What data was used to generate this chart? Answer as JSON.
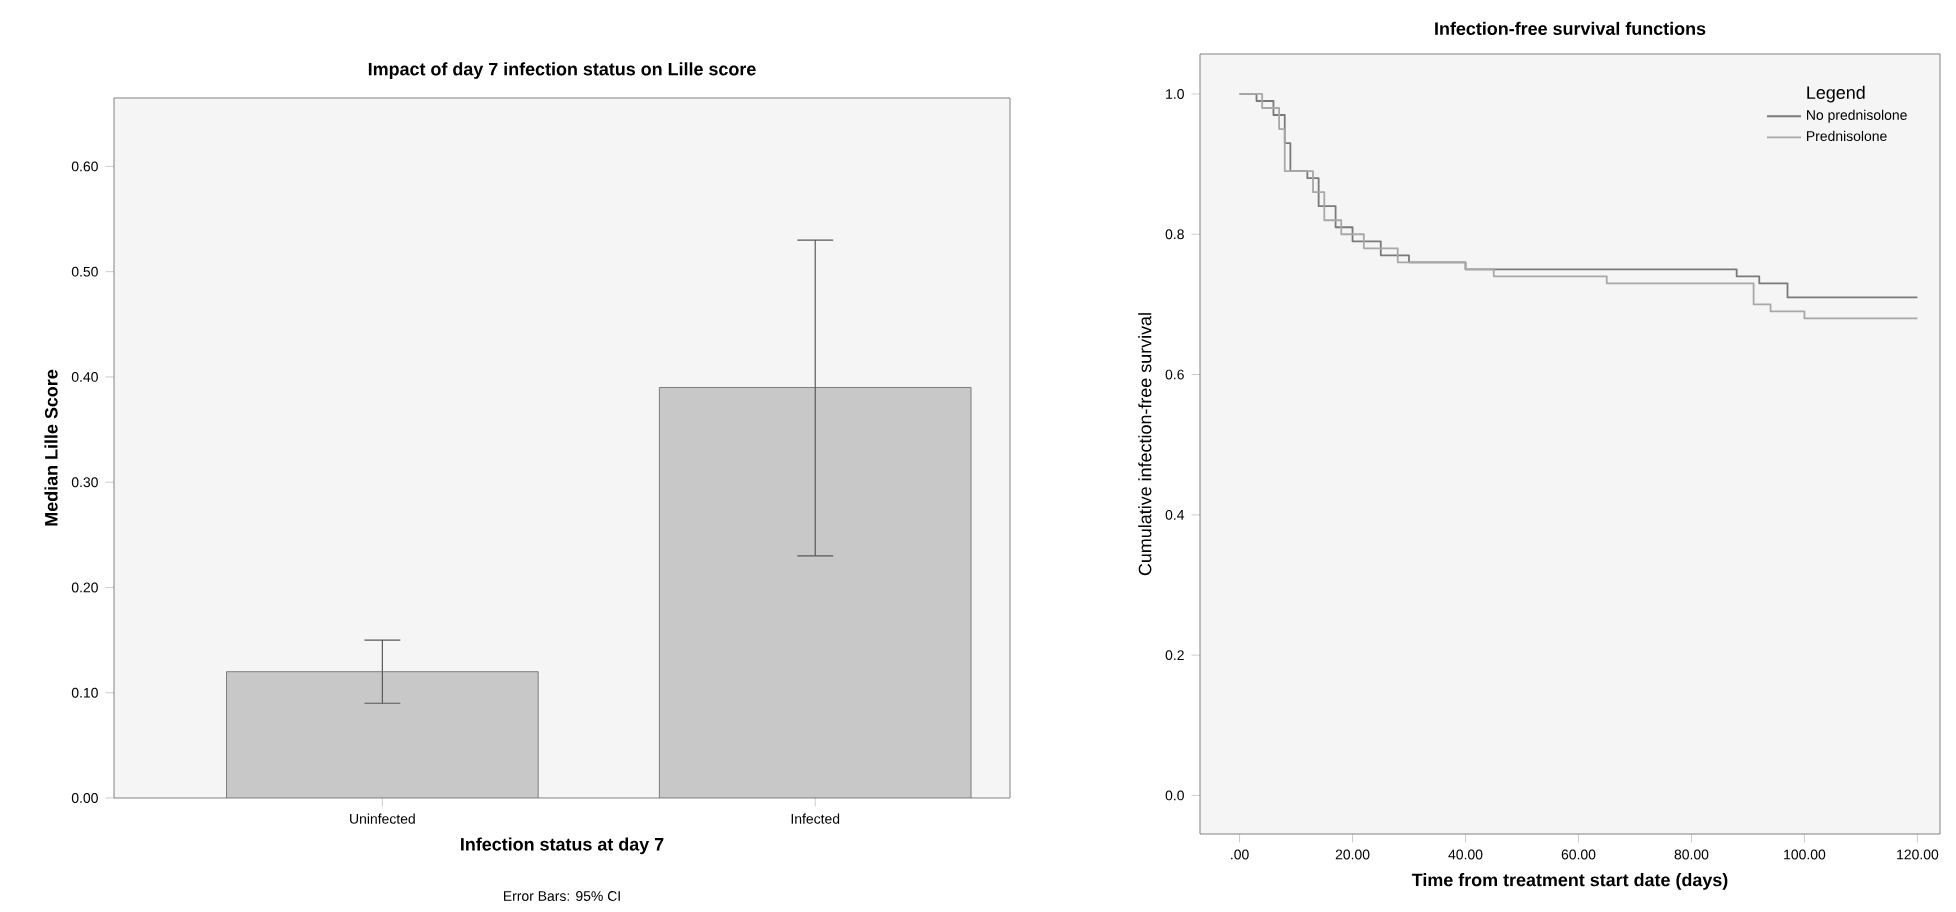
{
  "chart_data": [
    {
      "type": "bar",
      "title": "Impact of day 7 infection status on Lille score",
      "xlabel": "Infection status at day 7",
      "ylabel": "Median Lille Score",
      "annotations": [
        "Error Bars: 95% CI"
      ],
      "categories": [
        "Uninfected",
        "Infected"
      ],
      "values": [
        0.12,
        0.39
      ],
      "errors": [
        [
          0.09,
          0.15
        ],
        [
          0.23,
          0.53
        ]
      ],
      "color": "#c8c8c8",
      "ylim": [
        0,
        0.665
      ],
      "yticks": [
        {
          "value": 0,
          "label": "0.00"
        },
        {
          "value": 0.1,
          "label": "0.10"
        },
        {
          "value": 0.2,
          "label": "0.20"
        },
        {
          "value": 0.3,
          "label": "0.30"
        },
        {
          "value": 0.4,
          "label": "0.40"
        },
        {
          "value": 0.5,
          "label": "0.50"
        },
        {
          "value": 0.6,
          "label": "0.60"
        }
      ]
    },
    {
      "type": "step",
      "title": "Infection-free survival functions",
      "xlabel": "Time from treatment start date (days)",
      "ylabel": "Cumulative infection-free survival",
      "legend_title": "Legend",
      "legend": "top right",
      "series": [
        {
          "name": "No prednisolone",
          "color": "#7a7a7a",
          "x": [
            0,
            3,
            6,
            8,
            9,
            12,
            14,
            17,
            20,
            25,
            30,
            40,
            50,
            60,
            88,
            92,
            97,
            120
          ],
          "values": [
            1.0,
            0.99,
            0.97,
            0.93,
            0.89,
            0.88,
            0.84,
            0.81,
            0.79,
            0.77,
            0.76,
            0.75,
            0.75,
            0.75,
            0.74,
            0.73,
            0.71,
            0.71
          ]
        },
        {
          "name": "Prednisolone",
          "color": "#a8a8a8",
          "x": [
            0,
            4,
            7,
            8,
            13,
            15,
            18,
            22,
            28,
            40,
            45,
            60,
            65,
            90,
            91,
            94,
            100,
            120
          ],
          "values": [
            1.0,
            0.98,
            0.95,
            0.89,
            0.86,
            0.82,
            0.8,
            0.78,
            0.76,
            0.75,
            0.74,
            0.74,
            0.73,
            0.73,
            0.7,
            0.69,
            0.68,
            0.68
          ]
        }
      ],
      "xlim": [
        -7,
        124
      ],
      "ylim": [
        -0.055,
        1.057
      ],
      "xticks": [
        {
          "value": 0,
          "label": ".00"
        },
        {
          "value": 20,
          "label": "20.00"
        },
        {
          "value": 40,
          "label": "40.00"
        },
        {
          "value": 60,
          "label": "60.00"
        },
        {
          "value": 80,
          "label": "80.00"
        },
        {
          "value": 100,
          "label": "100.00"
        },
        {
          "value": 120,
          "label": "120.00"
        }
      ],
      "yticks": [
        {
          "value": 0,
          "label": "0.0"
        },
        {
          "value": 0.2,
          "label": "0.2"
        },
        {
          "value": 0.4,
          "label": "0.4"
        },
        {
          "value": 0.6,
          "label": "0.6"
        },
        {
          "value": 0.8,
          "label": "0.8"
        },
        {
          "value": 1.0,
          "label": "1.0"
        }
      ]
    }
  ]
}
